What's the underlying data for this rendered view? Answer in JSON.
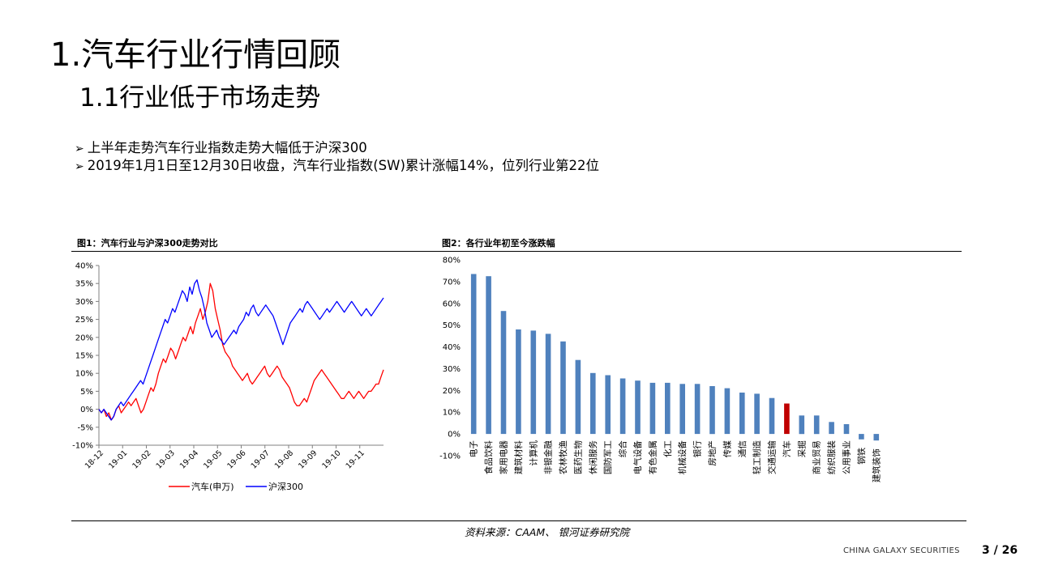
{
  "slide": {
    "title": "1.汽车行业行情回顾",
    "subtitle": "1.1行业低于市场走势",
    "bullets": [
      "上半年走势汽车行业指数走势大幅低于沪深300",
      "2019年1月1日至12月30日收盘，汽车行业指数(SW)累计涨幅14%，位列行业第22位"
    ],
    "bullet_icon": "arrow-bullet-icon",
    "source": "资料来源：CAAM、 银河证券研究院",
    "footer_brand": "CHINA GALAXY SECURITIES",
    "page_number": "3 /  26"
  },
  "chart_data": [
    {
      "type": "line",
      "title": "图1：汽车行业与沪深300走势对比",
      "x_tick_labels": [
        "18-12",
        "19-01",
        "19-02",
        "19-03",
        "19-04",
        "19-05",
        "19-06",
        "19-07",
        "19-08",
        "19-09",
        "19-10",
        "19-11"
      ],
      "y_tick_labels": [
        "-10%",
        "-5%",
        "0%",
        "5%",
        "10%",
        "15%",
        "20%",
        "25%",
        "30%",
        "35%",
        "40%"
      ],
      "ylim": [
        -10,
        40
      ],
      "legend": "bottom",
      "series": [
        {
          "name": "汽车(申万)",
          "color": "#ff0000",
          "values": [
            0,
            -1,
            0,
            -2,
            -1,
            -3,
            -2,
            0,
            1,
            -1,
            0,
            1,
            2,
            1,
            2,
            3,
            1,
            -1,
            0,
            2,
            4,
            6,
            5,
            7,
            10,
            12,
            14,
            13,
            15,
            17,
            16,
            14,
            16,
            18,
            20,
            19,
            21,
            23,
            21,
            24,
            26,
            28,
            25,
            27,
            30,
            35,
            33,
            28,
            25,
            22,
            18,
            16,
            15,
            14,
            12,
            11,
            10,
            9,
            8,
            9,
            10,
            8,
            7,
            8,
            9,
            10,
            11,
            12,
            10,
            9,
            10,
            11,
            12,
            11,
            9,
            8,
            7,
            6,
            4,
            2,
            1,
            1,
            2,
            3,
            2,
            4,
            6,
            8,
            9,
            10,
            11,
            10,
            9,
            8,
            7,
            6,
            5,
            4,
            3,
            3,
            4,
            5,
            4,
            3,
            4,
            5,
            4,
            3,
            4,
            5,
            5,
            6,
            7,
            7,
            9,
            11
          ]
        },
        {
          "name": "沪深300",
          "color": "#0000ff",
          "values": [
            0,
            -1,
            0,
            -1,
            -2,
            -3,
            -2,
            0,
            1,
            2,
            1,
            2,
            3,
            4,
            5,
            6,
            7,
            8,
            7,
            9,
            11,
            13,
            15,
            17,
            19,
            21,
            23,
            25,
            24,
            26,
            28,
            27,
            29,
            31,
            33,
            32,
            30,
            34,
            32,
            35,
            36,
            33,
            31,
            28,
            24,
            22,
            20,
            21,
            22,
            20,
            19,
            18,
            19,
            20,
            21,
            22,
            21,
            23,
            24,
            25,
            27,
            26,
            28,
            29,
            27,
            26,
            27,
            28,
            29,
            28,
            27,
            26,
            24,
            22,
            20,
            18,
            20,
            22,
            24,
            25,
            26,
            27,
            28,
            27,
            29,
            30,
            29,
            28,
            27,
            26,
            25,
            26,
            27,
            28,
            27,
            28,
            29,
            30,
            29,
            28,
            27,
            28,
            29,
            30,
            29,
            28,
            27,
            26,
            27,
            28,
            27,
            26,
            27,
            28,
            29,
            30,
            31
          ]
        }
      ]
    },
    {
      "type": "bar",
      "title": "图2：各行业年初至今涨跌幅",
      "categories": [
        "电子",
        "食品饮料",
        "家用电器",
        "建筑材料",
        "计算机",
        "非银金融",
        "农林牧渔",
        "医药生物",
        "休闲服务",
        "国防军工",
        "综合",
        "电气设备",
        "有色金属",
        "化工",
        "机械设备",
        "银行",
        "房地产",
        "传媒",
        "通信",
        "轻工制造",
        "交通运输",
        "汽车",
        "采掘",
        "商业贸易",
        "纺织服装",
        "公用事业",
        "钢铁",
        "建筑装饰"
      ],
      "values": [
        73.5,
        72.5,
        56.5,
        48,
        47.5,
        46,
        42.5,
        34,
        28,
        27,
        25.5,
        24.5,
        23.5,
        23.5,
        23,
        23,
        22,
        21,
        19,
        18.5,
        16.5,
        14,
        8.5,
        8.5,
        5.5,
        4.5,
        -2.5,
        -3
      ],
      "highlight_category": "汽车",
      "bar_color": "#4f81bd",
      "highlight_color": "#c00000",
      "y_tick_labels": [
        "-10%",
        "0%",
        "10%",
        "20%",
        "30%",
        "40%",
        "50%",
        "60%",
        "70%",
        "80%"
      ],
      "ylim": [
        -10,
        80
      ]
    }
  ]
}
